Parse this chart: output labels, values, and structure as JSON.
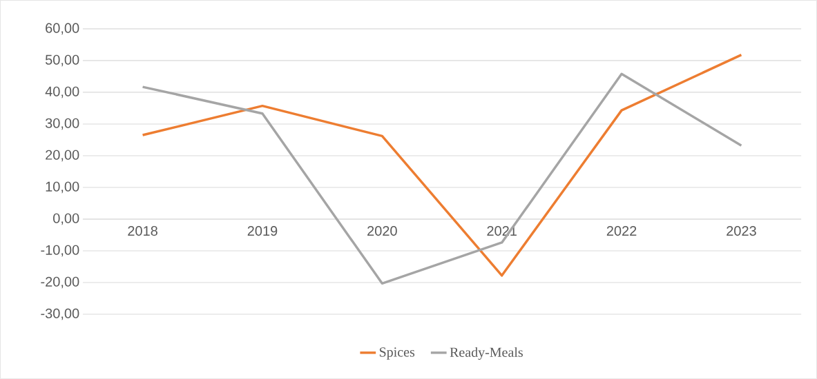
{
  "chart_data": {
    "type": "line",
    "categories": [
      "2018",
      "2019",
      "2020",
      "2021",
      "2022",
      "2023"
    ],
    "series": [
      {
        "name": "Spices",
        "color": "#ed7d31",
        "values": [
          26.5,
          35.7,
          26.2,
          -17.8,
          34.3,
          51.8
        ]
      },
      {
        "name": "Ready-Meals",
        "color": "#a5a5a5",
        "values": [
          41.7,
          33.3,
          -20.3,
          -7.4,
          45.8,
          23.2
        ]
      }
    ],
    "ylim": [
      -30,
      60
    ],
    "yticks": [
      {
        "value": -30,
        "label": "-30,00"
      },
      {
        "value": -20,
        "label": "-20,00"
      },
      {
        "value": -10,
        "label": "-10,00"
      },
      {
        "value": 0,
        "label": "0,00"
      },
      {
        "value": 10,
        "label": "10,00"
      },
      {
        "value": 20,
        "label": "20,00"
      },
      {
        "value": 30,
        "label": "30,00"
      },
      {
        "value": 40,
        "label": "40,00"
      },
      {
        "value": 50,
        "label": "50,00"
      },
      {
        "value": 60,
        "label": "60,00"
      }
    ],
    "grid": "y",
    "legend": "bottom"
  }
}
